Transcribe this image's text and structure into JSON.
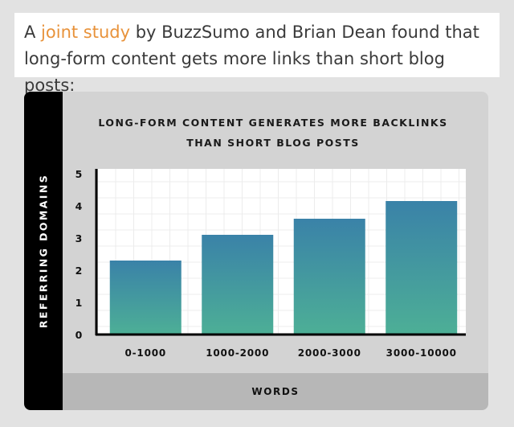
{
  "intro": {
    "before": "A ",
    "link": "joint study",
    "after": " by BuzzSumo and Brian Dean found that long-form content gets more links than short blog posts:"
  },
  "chart_data": {
    "type": "bar",
    "title_line1": "LONG-FORM CONTENT GENERATES MORE BACKLINKS",
    "title_line2": "THAN SHORT BLOG POSTS",
    "xlabel": "WORDS",
    "ylabel": "REFERRING DOMAINS",
    "categories": [
      "0-1000",
      "1000-2000",
      "2000-3000",
      "3000-10000"
    ],
    "values": [
      2.3,
      3.1,
      3.6,
      4.15
    ],
    "yticks": [
      "0",
      "1",
      "2",
      "3",
      "4",
      "5"
    ],
    "ylim": [
      0,
      5
    ],
    "grid": true,
    "colors": {
      "bar_top": "#3a82a8",
      "bar_bottom": "#4daf96",
      "grid": "#ececec"
    }
  }
}
